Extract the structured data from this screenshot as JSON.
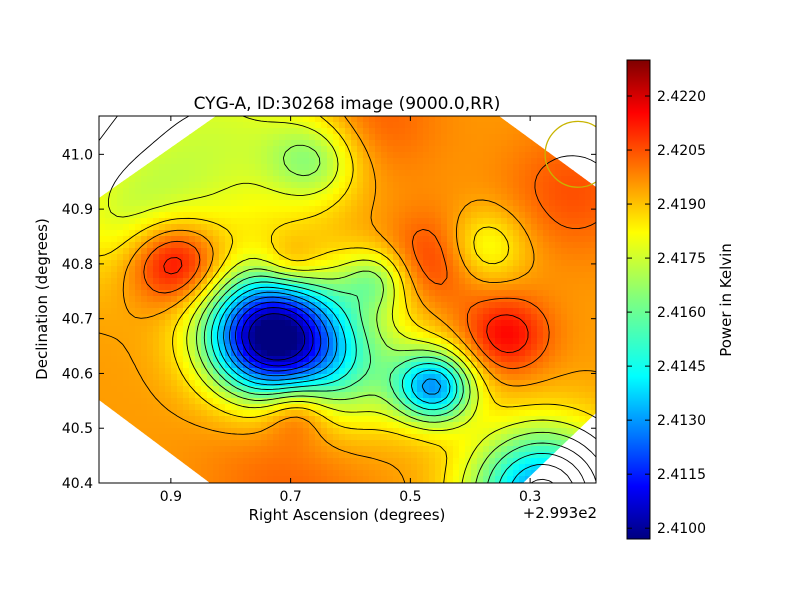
{
  "chart_data": {
    "type": "heatmap",
    "title": "CYG-A, ID:30268 image (9000.0,RR)",
    "xlabel": "Right Ascension (degrees)",
    "ylabel": "Declination (degrees)",
    "x_offset_label": "+2.993e2",
    "colorbar_label": "Power in Kelvin",
    "colormap": "jet",
    "xlim": [
      1.02,
      0.19
    ],
    "ylim": [
      40.4,
      41.07
    ],
    "x_ticks": [
      0.9,
      0.7,
      0.5,
      0.3
    ],
    "x_tick_labels": [
      "0.9",
      "0.7",
      "0.5",
      "0.3"
    ],
    "y_ticks": [
      40.4,
      40.5,
      40.6,
      40.7,
      40.8,
      40.9,
      41.0
    ],
    "y_tick_labels": [
      "40.4",
      "40.5",
      "40.6",
      "40.7",
      "40.8",
      "40.9",
      "41.0"
    ],
    "colorbar_range": [
      2.4097,
      2.423
    ],
    "colorbar_ticks": [
      2.41,
      2.4115,
      2.413,
      2.4145,
      2.416,
      2.4175,
      2.419,
      2.4205,
      2.422
    ],
    "colorbar_tick_labels": [
      "2.4100",
      "2.4115",
      "2.4130",
      "2.4145",
      "2.4160",
      "2.4175",
      "2.4190",
      "2.4205",
      "2.4220"
    ],
    "base_value": 2.4193,
    "field_sources": [
      {
        "ra": 0.735,
        "dec": 40.67,
        "amplitude": -0.0092,
        "width": 0.075
      },
      {
        "ra": 0.46,
        "dec": 40.575,
        "amplitude": -0.0054,
        "width": 0.046
      },
      {
        "ra": 0.28,
        "dec": 40.38,
        "amplitude": -0.006,
        "width": 0.085
      },
      {
        "ra": 0.62,
        "dec": 40.62,
        "amplitude": -0.003,
        "width": 0.09
      },
      {
        "ra": 0.82,
        "dec": 41.03,
        "amplitude": -0.0018,
        "width": 0.13
      },
      {
        "ra": 0.96,
        "dec": 40.88,
        "amplitude": -0.0016,
        "width": 0.09
      },
      {
        "ra": 0.38,
        "dec": 40.83,
        "amplitude": -0.002,
        "width": 0.05
      },
      {
        "ra": 0.56,
        "dec": 40.77,
        "amplitude": -0.0022,
        "width": 0.04
      },
      {
        "ra": 0.66,
        "dec": 40.99,
        "amplitude": -0.0022,
        "width": 0.055
      },
      {
        "ra": 0.895,
        "dec": 40.805,
        "amplitude": 0.003,
        "width": 0.055
      },
      {
        "ra": 0.34,
        "dec": 40.67,
        "amplitude": 0.002,
        "width": 0.05
      },
      {
        "ra": 0.45,
        "dec": 40.81,
        "amplitude": 0.0016,
        "width": 0.06
      },
      {
        "ra": 0.69,
        "dec": 40.535,
        "amplitude": 0.0018,
        "width": 0.04
      },
      {
        "ra": 0.7,
        "dec": 40.8,
        "amplitude": 0.0012,
        "width": 0.035
      },
      {
        "ra": 0.57,
        "dec": 41.06,
        "amplitude": 0.001,
        "width": 0.08
      },
      {
        "ra": 0.23,
        "dec": 40.93,
        "amplitude": 0.001,
        "width": 0.08
      },
      {
        "ra": 0.7,
        "dec": 40.42,
        "amplitude": 0.0008,
        "width": 0.1
      }
    ],
    "beam_circle": {
      "ra": 0.22,
      "dec": 41.0,
      "radius_deg": 0.055,
      "color": "#c8b400"
    },
    "contour_color": "#000000",
    "axes_color": "#000000"
  }
}
